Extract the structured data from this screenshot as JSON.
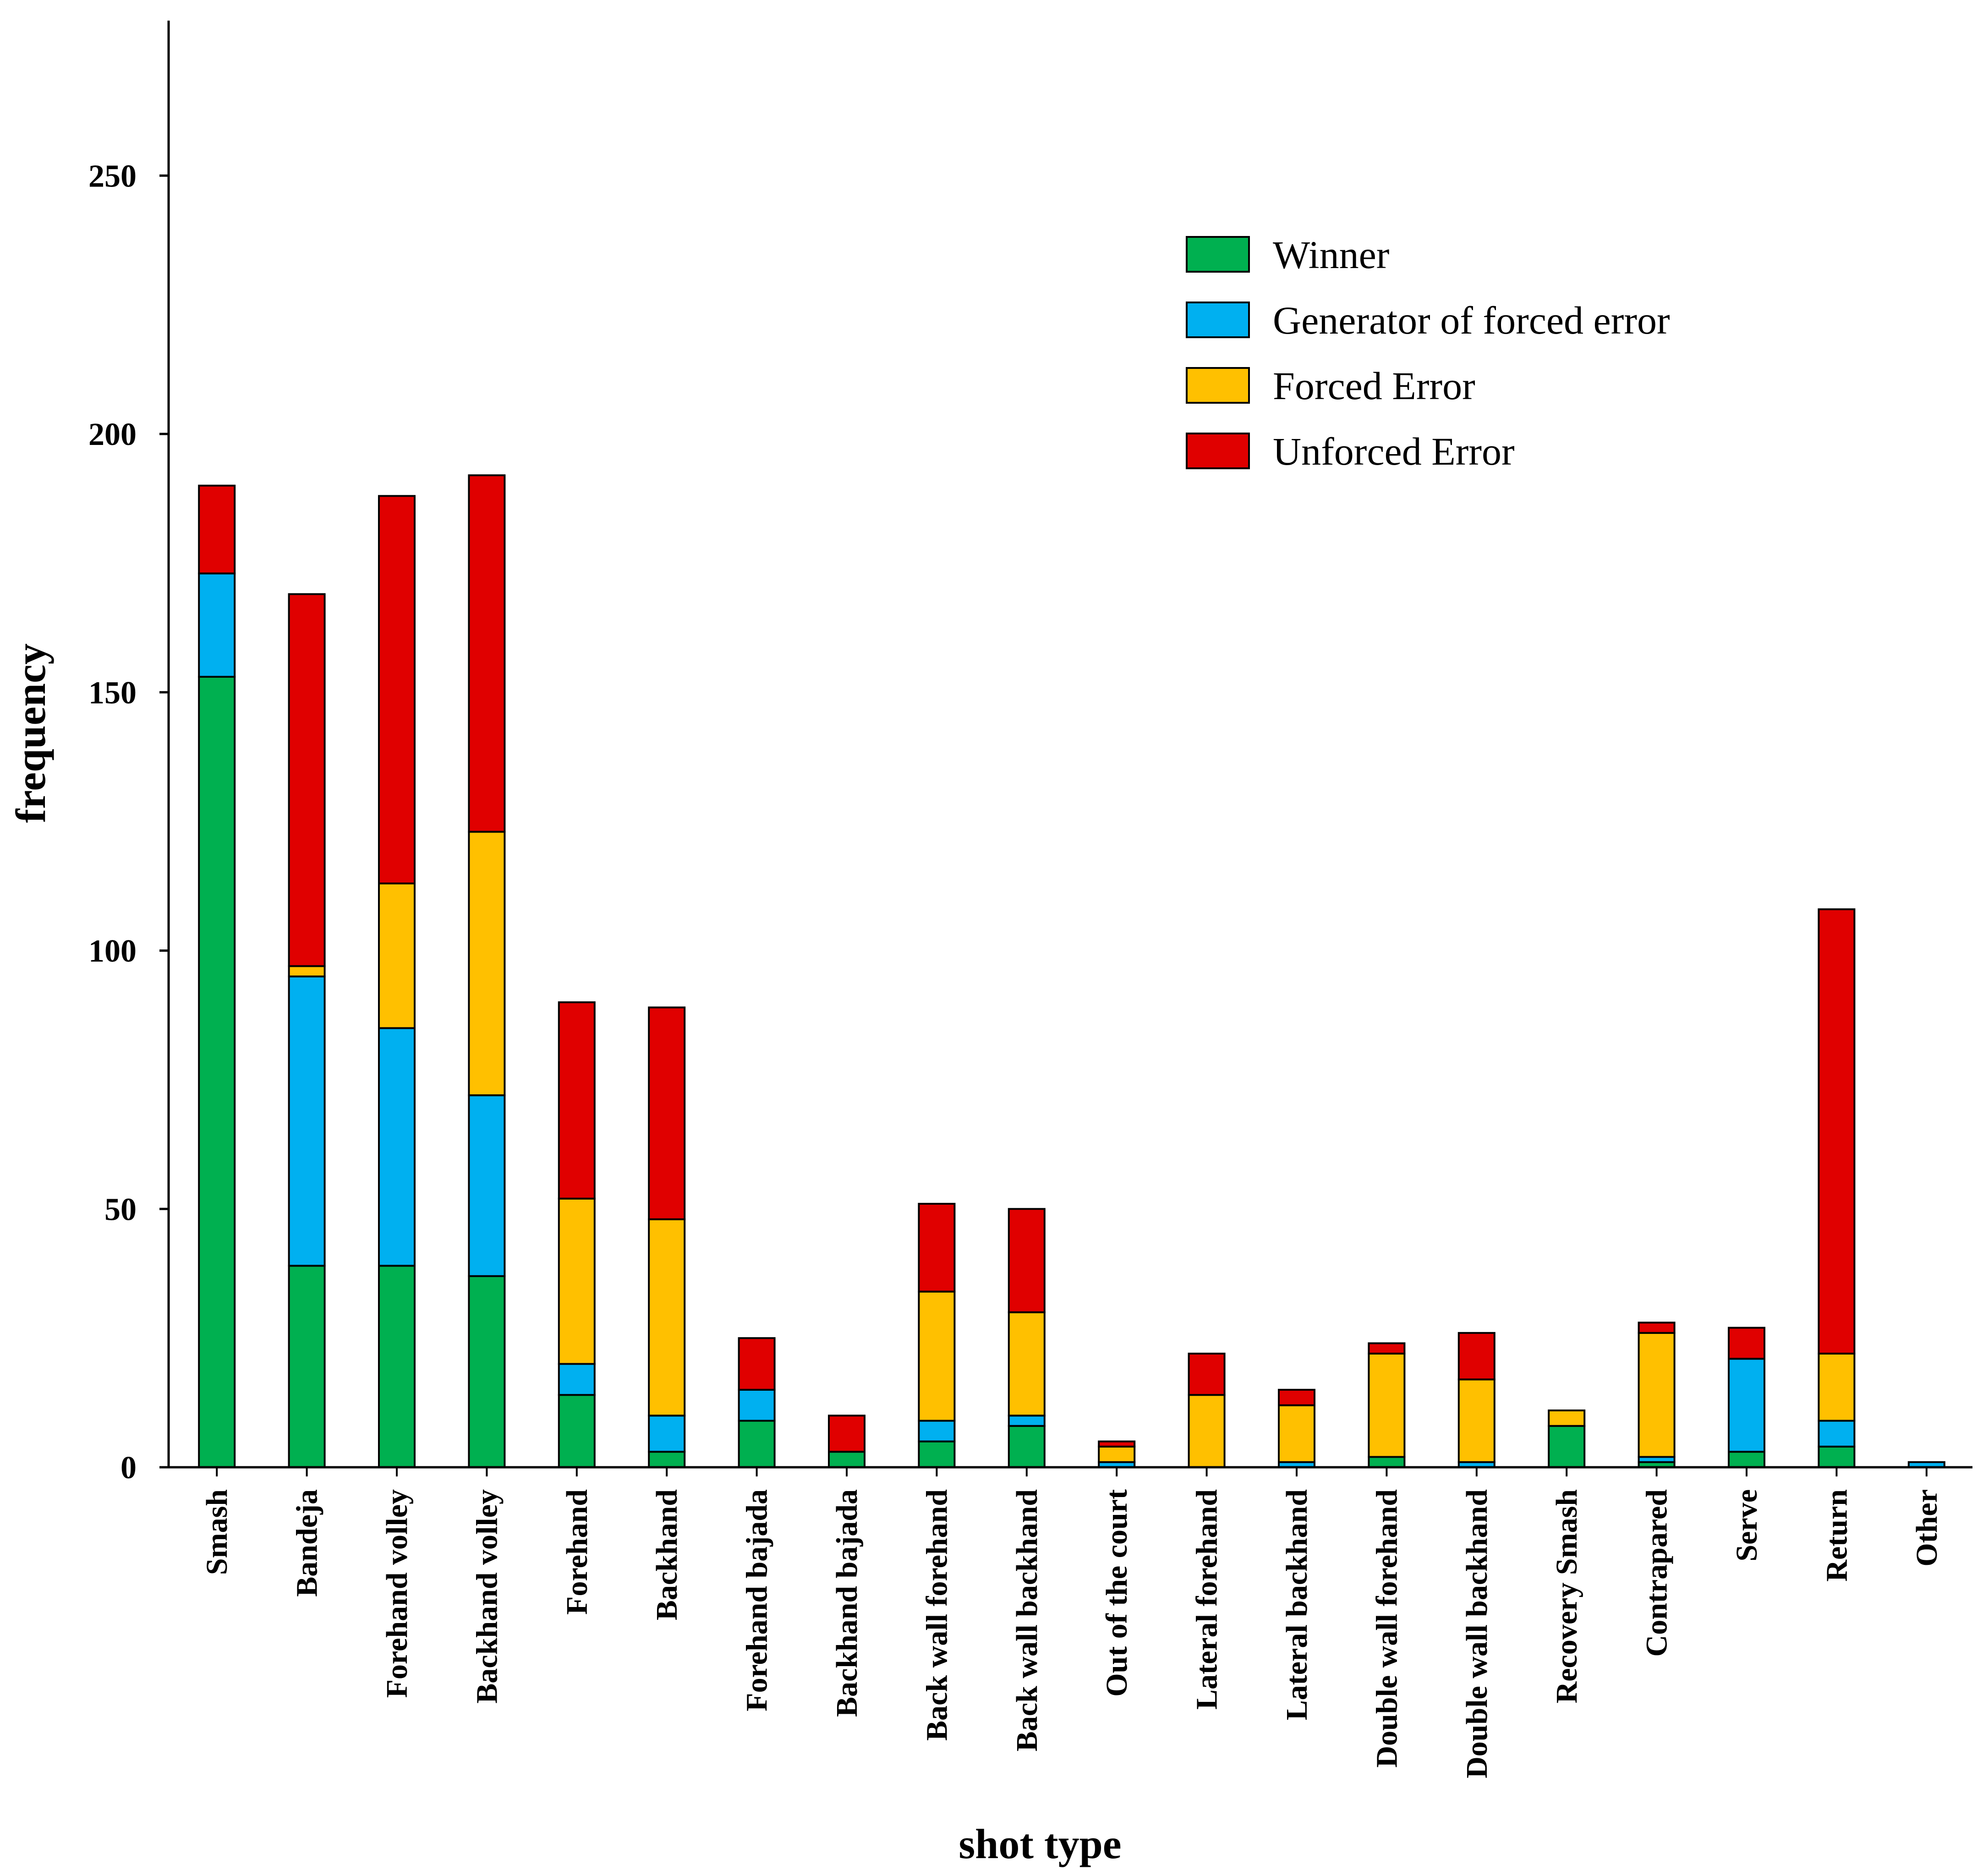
{
  "chart_data": {
    "type": "bar",
    "stacked": true,
    "title": "",
    "xlabel": "shot type",
    "ylabel": "frequency",
    "ylim": [
      0,
      280
    ],
    "yticks": [
      0,
      50,
      100,
      150,
      200,
      250
    ],
    "grid": false,
    "legend_position": "top-right",
    "categories": [
      "Smash",
      "Bandeja",
      "Forehand volley",
      "Backhand volley",
      "Forehand",
      "Backhand",
      "Forehand bajada",
      "Backhand bajada",
      "Back wall forehand",
      "Back wall backhand",
      "Out of the court",
      "Lateral forehand",
      "Lateral backhand",
      "Double wall forehand",
      "Double wall backhand",
      "Recovery Smash",
      "Contrapared",
      "Serve",
      "Return",
      "Other"
    ],
    "series": [
      {
        "name": "Winner",
        "color": "#00b050",
        "values": [
          153,
          39,
          39,
          37,
          14,
          3,
          9,
          3,
          5,
          8,
          0,
          0,
          0,
          2,
          0,
          8,
          1,
          3,
          4,
          0
        ]
      },
      {
        "name": "Generator of forced error",
        "color": "#00b0f0",
        "values": [
          20,
          56,
          46,
          35,
          6,
          7,
          6,
          0,
          4,
          2,
          1,
          0,
          1,
          0,
          1,
          0,
          1,
          18,
          5,
          1
        ]
      },
      {
        "name": "Forced Error",
        "color": "#ffc000",
        "values": [
          0,
          2,
          28,
          51,
          32,
          38,
          0,
          0,
          25,
          20,
          3,
          14,
          11,
          20,
          16,
          3,
          24,
          0,
          13,
          0
        ]
      },
      {
        "name": "Unforced Error",
        "color": "#e00000",
        "values": [
          17,
          72,
          75,
          69,
          38,
          41,
          10,
          7,
          17,
          20,
          1,
          8,
          3,
          2,
          9,
          0,
          2,
          6,
          86,
          0
        ]
      }
    ]
  }
}
